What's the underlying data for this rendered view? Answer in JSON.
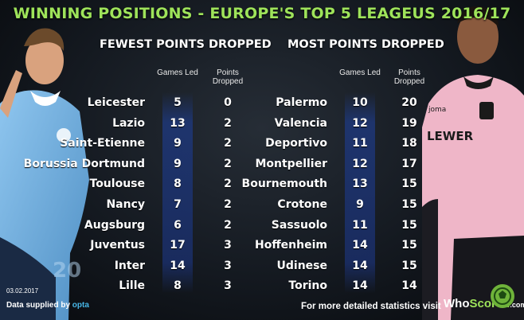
{
  "title": "WINNING POSITIONS - EUROPE'S TOP 5 LEAGEUS 2016/17",
  "footer": {
    "date": "03.02.2017",
    "supplied_prefix": "Data supplied by",
    "supplied_brand": "opta",
    "more_stats": "For more detailed statistics visit",
    "brand_who": "Who",
    "brand_scored": "Scored",
    "brand_suffix": ".com"
  },
  "colors": {
    "title": "#9ee35a",
    "highlight_column": "#1e3778",
    "text": "#ffffff",
    "opta": "#47b6e6"
  },
  "chart_data": [
    {
      "type": "table",
      "title": "FEWEST POINTS DROPPED",
      "columns": [
        "Games Led",
        "Points Dropped"
      ],
      "rows": [
        {
          "team": "Leicester",
          "games_led": 5,
          "points_dropped": 0
        },
        {
          "team": "Lazio",
          "games_led": 13,
          "points_dropped": 2
        },
        {
          "team": "Saint-Etienne",
          "games_led": 9,
          "points_dropped": 2
        },
        {
          "team": "Borussia Dortmund",
          "games_led": 9,
          "points_dropped": 2
        },
        {
          "team": "Toulouse",
          "games_led": 8,
          "points_dropped": 2
        },
        {
          "team": "Nancy",
          "games_led": 7,
          "points_dropped": 2
        },
        {
          "team": "Augsburg",
          "games_led": 6,
          "points_dropped": 2
        },
        {
          "team": "Juventus",
          "games_led": 17,
          "points_dropped": 3
        },
        {
          "team": "Inter",
          "games_led": 14,
          "points_dropped": 3
        },
        {
          "team": "Lille",
          "games_led": 8,
          "points_dropped": 3
        }
      ]
    },
    {
      "type": "table",
      "title": "MOST POINTS DROPPED",
      "columns": [
        "Games Led",
        "Points Dropped"
      ],
      "rows": [
        {
          "team": "Palermo",
          "games_led": 10,
          "points_dropped": 20
        },
        {
          "team": "Valencia",
          "games_led": 12,
          "points_dropped": 19
        },
        {
          "team": "Deportivo",
          "games_led": 11,
          "points_dropped": 18
        },
        {
          "team": "Montpellier",
          "games_led": 12,
          "points_dropped": 17
        },
        {
          "team": "Bournemouth",
          "games_led": 13,
          "points_dropped": 15
        },
        {
          "team": "Crotone",
          "games_led": 9,
          "points_dropped": 15
        },
        {
          "team": "Sassuolo",
          "games_led": 11,
          "points_dropped": 15
        },
        {
          "team": "Hoffenheim",
          "games_led": 14,
          "points_dropped": 15
        },
        {
          "team": "Udinese",
          "games_led": 14,
          "points_dropped": 15
        },
        {
          "team": "Torino",
          "games_led": 14,
          "points_dropped": 14
        }
      ]
    }
  ]
}
